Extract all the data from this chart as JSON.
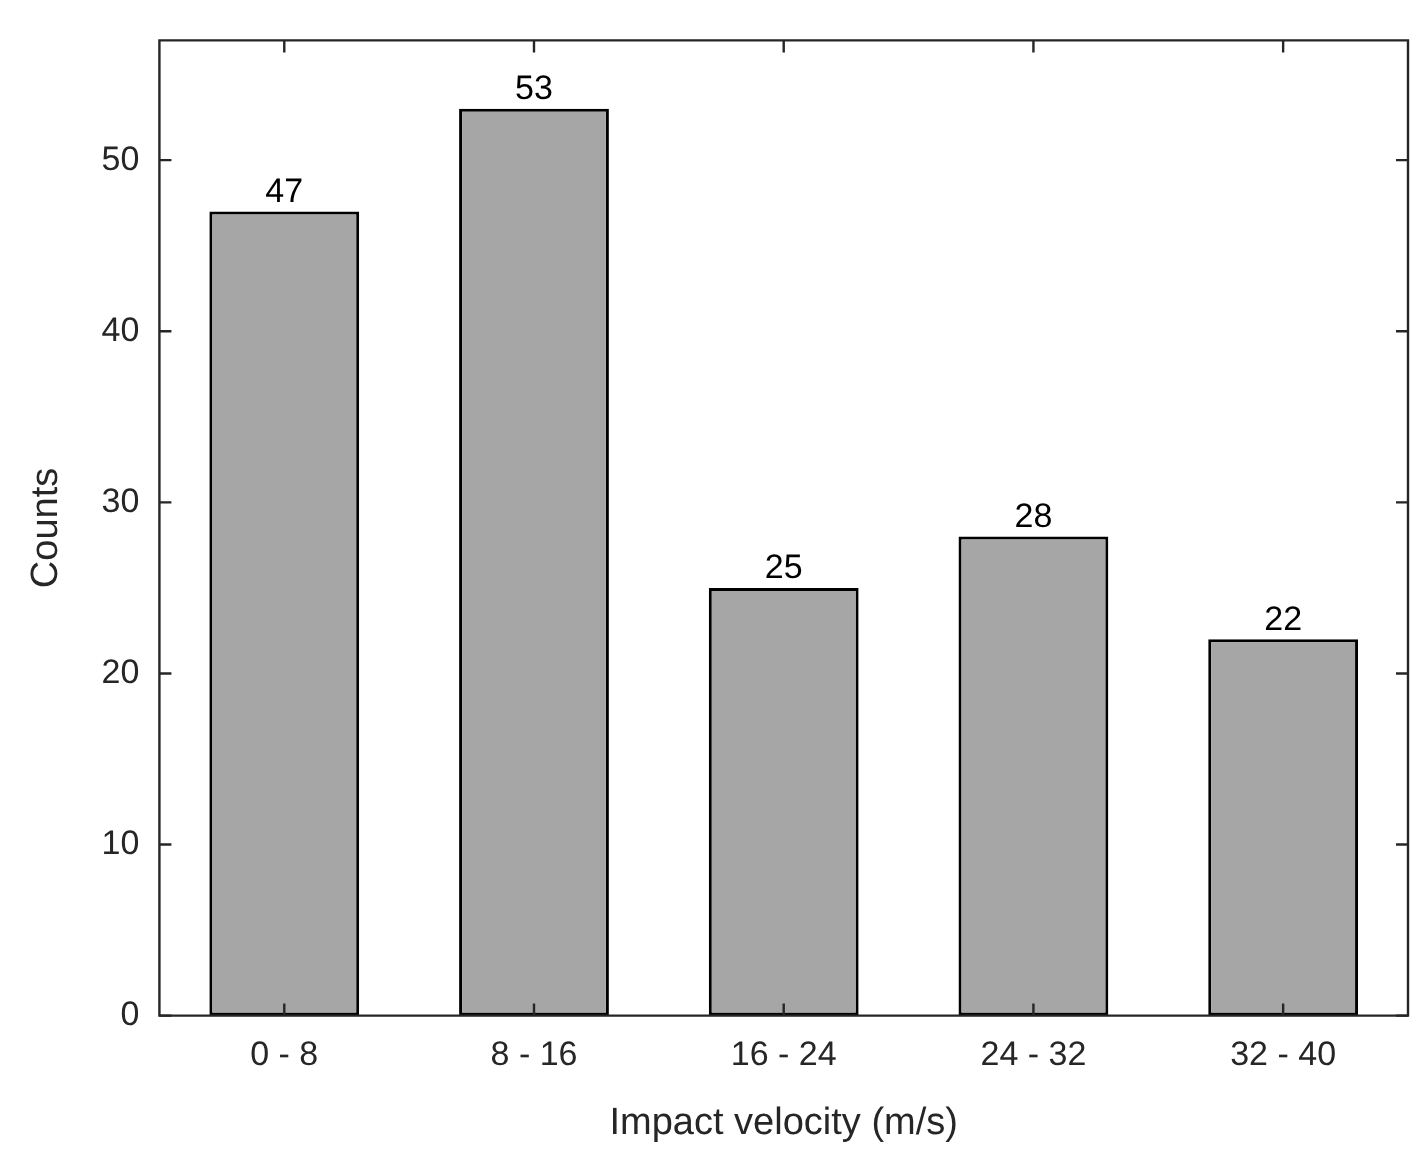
{
  "chart_data": {
    "type": "bar",
    "xlabel": "Impact velocity (m/s)",
    "ylabel": "Counts",
    "categories": [
      "0 - 8",
      "8 - 16",
      "16 - 24",
      "24 - 32",
      "32 - 40"
    ],
    "values": [
      47,
      53,
      25,
      28,
      22
    ],
    "color": "#a6a6a6",
    "ylim": [
      0,
      57
    ],
    "yticks": [
      0,
      10,
      20,
      30,
      40,
      50
    ],
    "grid": false,
    "legend": false,
    "data_labels": true
  }
}
